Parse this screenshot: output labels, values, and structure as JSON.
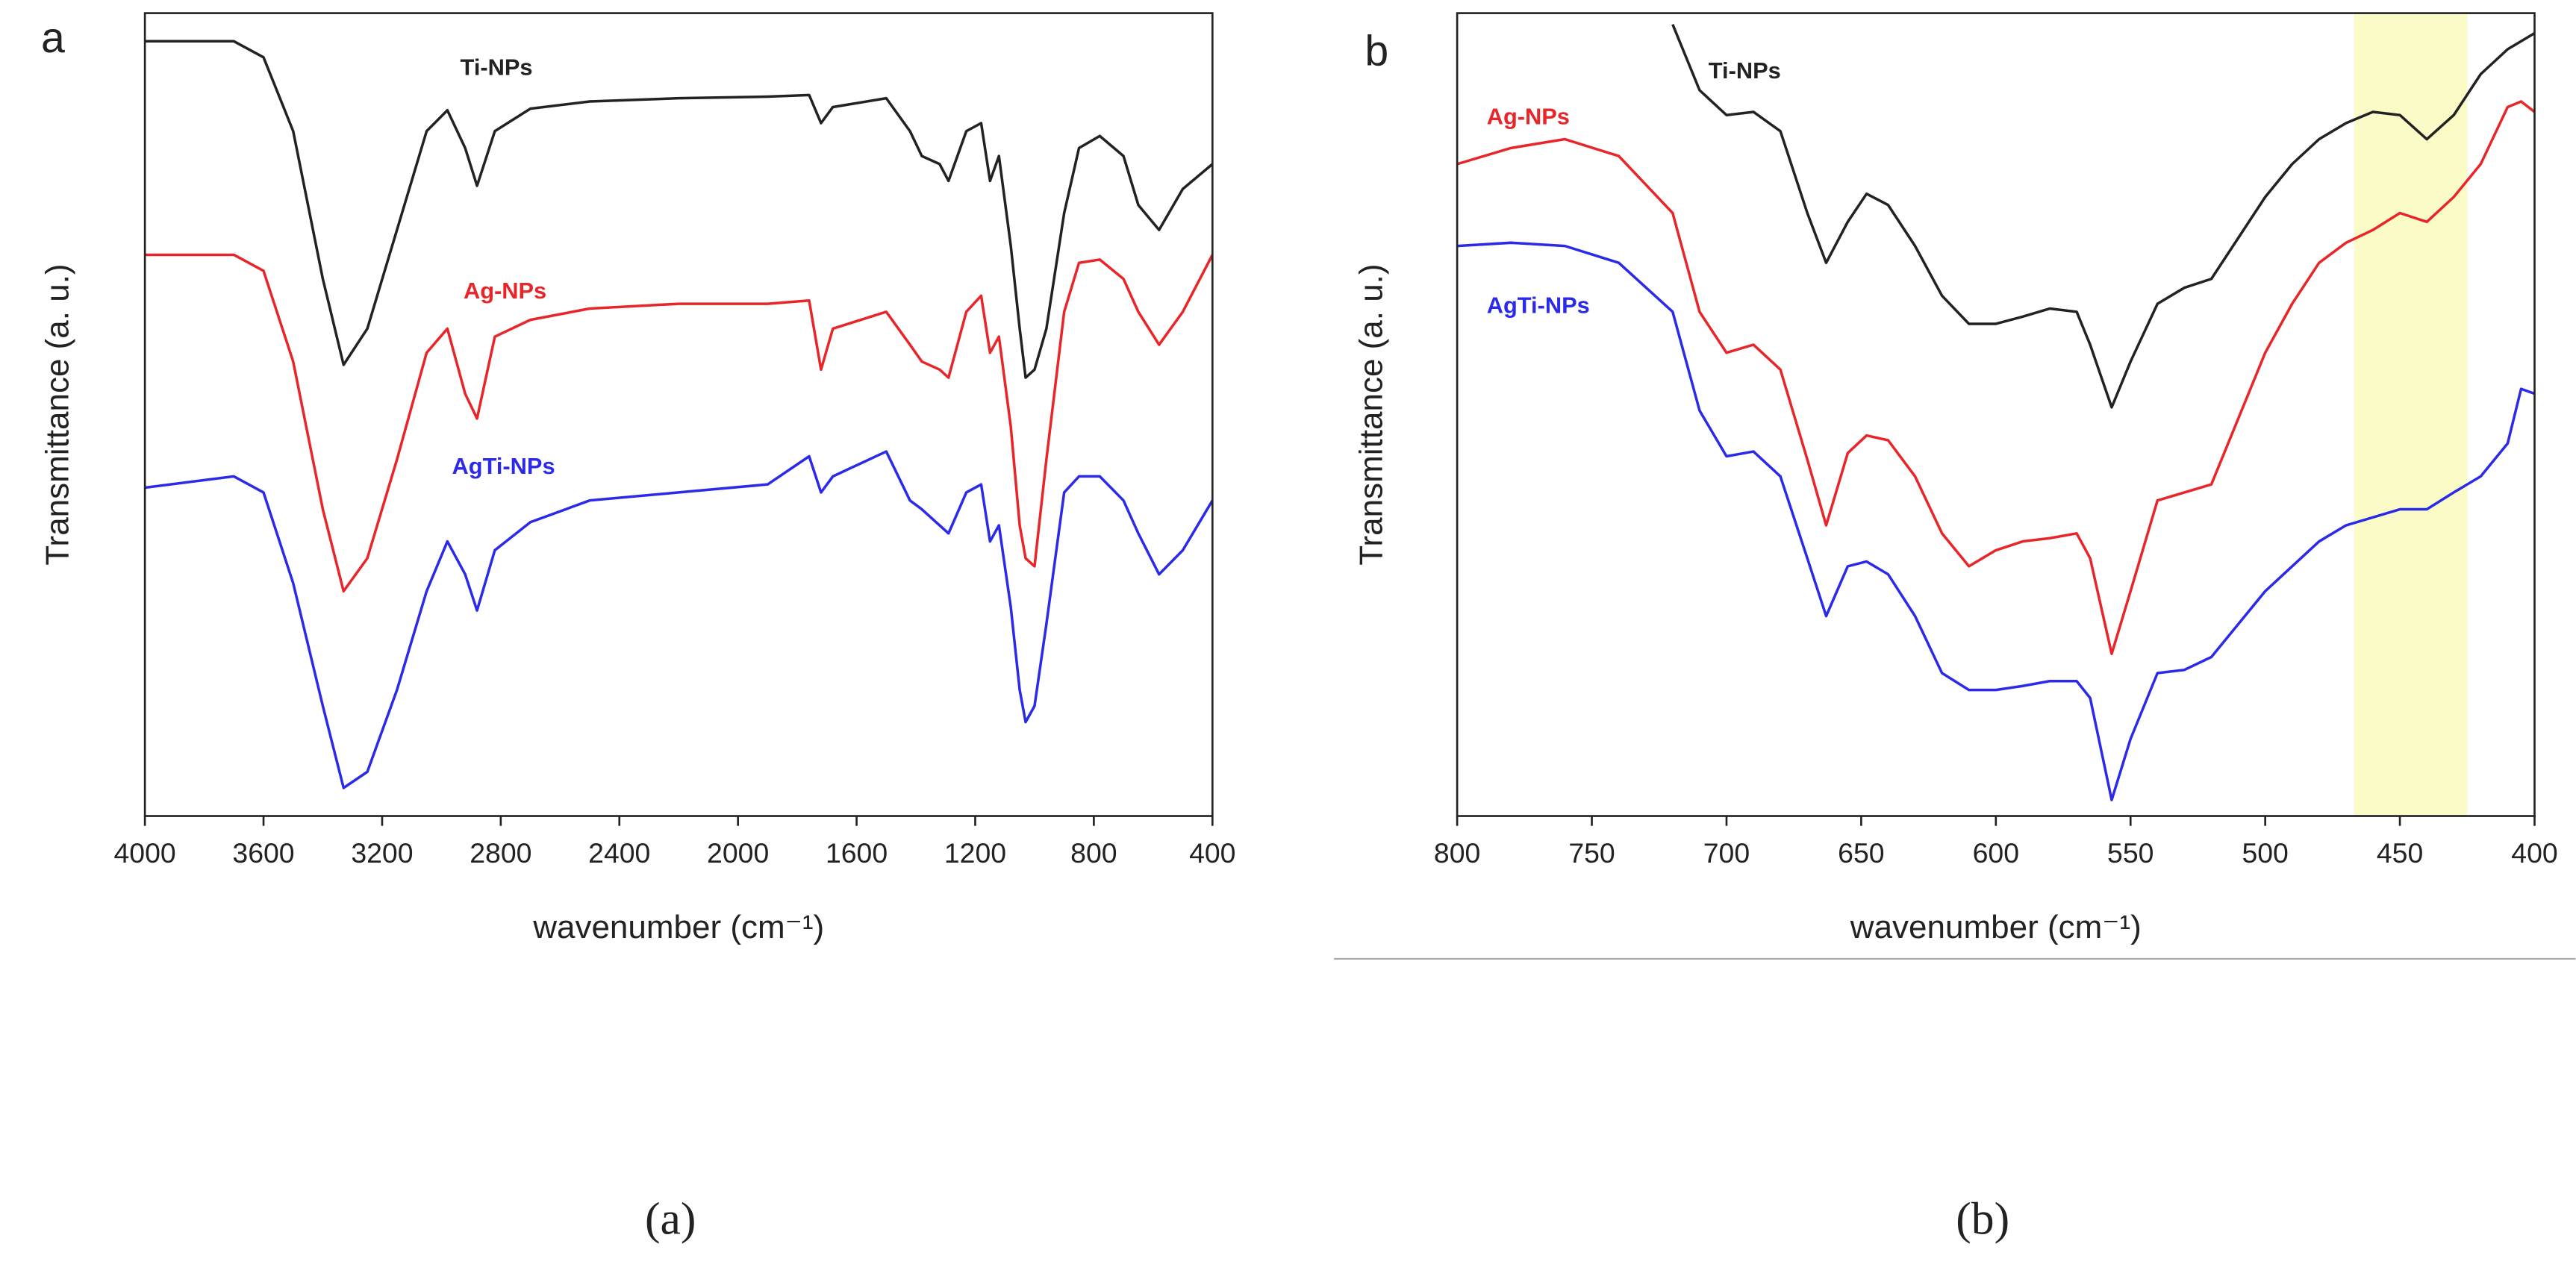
{
  "chart_data": [
    {
      "type": "line",
      "panel_label": "a",
      "caption": "(a)",
      "xlabel": "wavenumber (cm⁻¹)",
      "ylabel": "Transmittance (a. u.)",
      "xlim": [
        4000,
        400
      ],
      "xticks": [
        4000,
        3600,
        3200,
        2800,
        2400,
        2000,
        1600,
        1200,
        800,
        400
      ],
      "ylim": [
        0,
        100
      ],
      "x": [
        4000,
        3700,
        3600,
        3500,
        3400,
        3330,
        3250,
        3150,
        3050,
        2980,
        2920,
        2880,
        2820,
        2700,
        2500,
        2200,
        1900,
        1760,
        1720,
        1680,
        1500,
        1420,
        1380,
        1320,
        1290,
        1230,
        1180,
        1150,
        1120,
        1080,
        1050,
        1030,
        1000,
        960,
        900,
        850,
        780,
        700,
        650,
        580,
        500,
        400
      ],
      "series": [
        {
          "name": "Ti-NPs",
          "color": "#222222",
          "values": [
            96.5,
            96.5,
            94.5,
            85.3,
            66.9,
            56.2,
            60.7,
            73.0,
            85.3,
            87.9,
            83.2,
            78.5,
            85.3,
            88.1,
            89.0,
            89.4,
            89.6,
            89.8,
            86.3,
            88.3,
            89.4,
            85.3,
            82.2,
            81.2,
            79.1,
            85.3,
            86.3,
            79.1,
            82.2,
            71.0,
            60.7,
            54.6,
            55.6,
            60.7,
            75.1,
            83.2,
            84.7,
            82.2,
            76.1,
            73.0,
            78.1,
            81.2
          ]
        },
        {
          "name": "Ag-NPs",
          "color": "#e8262a",
          "values": [
            69.9,
            69.9,
            67.9,
            56.6,
            38.2,
            28.0,
            32.1,
            44.4,
            57.7,
            60.7,
            52.6,
            49.5,
            59.7,
            61.8,
            63.2,
            63.8,
            63.8,
            64.2,
            55.6,
            60.7,
            62.8,
            58.7,
            56.6,
            55.6,
            54.6,
            62.8,
            64.8,
            57.7,
            59.7,
            48.5,
            36.2,
            32.1,
            31.1,
            44.4,
            62.8,
            68.9,
            69.3,
            66.9,
            62.8,
            58.7,
            62.8,
            69.9
          ]
        },
        {
          "name": "AgTi-NPs",
          "color": "#2a2ae8",
          "values": [
            40.9,
            42.3,
            40.3,
            29.0,
            13.7,
            3.5,
            5.5,
            15.7,
            28.0,
            34.2,
            30.1,
            25.6,
            33.1,
            36.6,
            39.3,
            40.3,
            41.3,
            44.8,
            40.3,
            42.3,
            45.4,
            39.3,
            38.2,
            36.2,
            35.2,
            40.3,
            41.3,
            34.2,
            36.2,
            26.0,
            15.7,
            11.7,
            13.7,
            23.9,
            40.3,
            42.3,
            42.3,
            39.3,
            35.2,
            30.1,
            33.1,
            39.3
          ]
        }
      ]
    },
    {
      "type": "line",
      "panel_label": "b",
      "caption": "(b)",
      "xlabel": "wavenumber (cm⁻¹)",
      "ylabel": "Transmittance (a. u.)",
      "xlim": [
        800,
        400
      ],
      "xticks": [
        800,
        750,
        700,
        650,
        600,
        550,
        500,
        450,
        400
      ],
      "ylim": [
        0,
        100
      ],
      "highlight_x": [
        467,
        425
      ],
      "highlight_color": "#fbfbc8",
      "x": [
        800,
        780,
        760,
        740,
        720,
        710,
        700,
        690,
        680,
        670,
        663,
        655,
        648,
        640,
        630,
        620,
        610,
        600,
        590,
        580,
        570,
        565,
        557,
        550,
        540,
        530,
        520,
        510,
        500,
        490,
        480,
        470,
        460,
        450,
        440,
        430,
        420,
        410,
        405,
        400
      ],
      "series": [
        {
          "name": "Ti-NPs",
          "color": "#222222",
          "values": [
            null,
            null,
            null,
            null,
            98.6,
            90.4,
            87.3,
            87.7,
            85.3,
            75.1,
            68.9,
            74.0,
            77.5,
            76.1,
            71.0,
            64.8,
            61.3,
            61.3,
            62.2,
            63.2,
            62.8,
            58.7,
            50.9,
            56.6,
            63.8,
            65.8,
            66.9,
            72.0,
            77.1,
            81.2,
            84.3,
            86.3,
            87.7,
            87.3,
            84.3,
            87.3,
            92.4,
            95.5,
            96.5,
            97.5
          ]
        },
        {
          "name": "Ag-NPs",
          "color": "#e8262a",
          "values": [
            81.2,
            83.2,
            84.3,
            82.2,
            75.1,
            62.8,
            57.7,
            58.7,
            55.6,
            44.4,
            36.2,
            45.2,
            47.4,
            46.8,
            42.3,
            35.2,
            31.1,
            33.1,
            34.2,
            34.6,
            35.2,
            32.1,
            20.2,
            28.0,
            39.3,
            40.3,
            41.3,
            49.5,
            57.7,
            63.8,
            68.9,
            71.4,
            73.0,
            75.1,
            74.0,
            77.1,
            81.2,
            88.3,
            89.0,
            87.7
          ]
        },
        {
          "name": "AgTi-NPs",
          "color": "#2a2ae8",
          "values": [
            71.0,
            71.4,
            71.0,
            68.9,
            62.8,
            50.5,
            44.8,
            45.4,
            42.3,
            32.1,
            24.9,
            31.1,
            31.7,
            30.1,
            24.9,
            17.8,
            15.7,
            15.7,
            16.2,
            16.8,
            16.8,
            14.7,
            2.0,
            9.6,
            17.8,
            18.2,
            19.8,
            23.9,
            28.0,
            31.1,
            34.2,
            36.2,
            37.2,
            38.2,
            38.2,
            40.3,
            42.3,
            46.4,
            53.2,
            52.6
          ]
        }
      ]
    }
  ]
}
